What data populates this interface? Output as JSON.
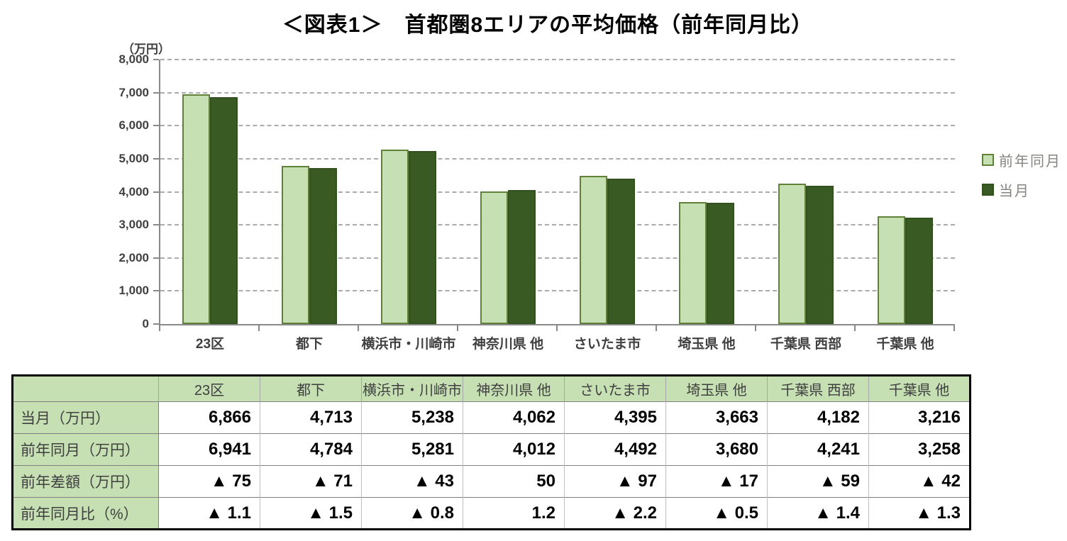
{
  "title": "＜図表1＞　首都圏8エリアの平均価格（前年同月比）",
  "chart_data": {
    "type": "bar",
    "title": "＜図表1＞　首都圏8エリアの平均価格（前年同月比）",
    "unit_label": "（万円）",
    "categories": [
      "23区",
      "都下",
      "横浜市・川崎市",
      "神奈川県 他",
      "さいたま市",
      "埼玉県 他",
      "千葉県 西部",
      "千葉県 他"
    ],
    "series": [
      {
        "name": "前年同月",
        "fill": "#c6e0b4",
        "border": "#5f8238",
        "values": [
          6941,
          4784,
          5281,
          4012,
          4492,
          3680,
          4241,
          3258
        ]
      },
      {
        "name": "当月",
        "fill": "#3a5a23",
        "border": "#33501f",
        "values": [
          6866,
          4713,
          5238,
          4062,
          4395,
          3663,
          4182,
          3216
        ]
      }
    ],
    "ylim": [
      0,
      8000
    ],
    "ytick_step": 1000,
    "ytick_labels": [
      "0",
      "1,000",
      "2,000",
      "3,000",
      "4,000",
      "5,000",
      "6,000",
      "7,000",
      "8,000"
    ],
    "grid": "horizontal-dashed",
    "legend_position": "right",
    "axis_color": "#898989",
    "gridline_color": "#ababab"
  },
  "table": {
    "header_bg": "#c6e0b4",
    "corner_label": "",
    "columns": [
      "23区",
      "都下",
      "横浜市・川崎市",
      "神奈川県 他",
      "さいたま市",
      "埼玉県 他",
      "千葉県 西部",
      "千葉県 他"
    ],
    "rows": [
      {
        "label": "当月（万円）",
        "values": [
          "6,866",
          "4,713",
          "5,238",
          "4,062",
          "4,395",
          "3,663",
          "4,182",
          "3,216"
        ]
      },
      {
        "label": "前年同月（万円）",
        "values": [
          "6,941",
          "4,784",
          "5,281",
          "4,012",
          "4,492",
          "3,680",
          "4,241",
          "3,258"
        ]
      },
      {
        "label": "前年差額（万円）",
        "values": [
          "▲ 75",
          "▲ 71",
          "▲ 43",
          "50",
          "▲ 97",
          "▲ 17",
          "▲ 59",
          "▲ 42"
        ]
      },
      {
        "label": "前年同月比（%）",
        "values": [
          "▲ 1.1",
          "▲ 1.5",
          "▲ 0.8",
          "1.2",
          "▲ 2.2",
          "▲ 0.5",
          "▲ 1.4",
          "▲ 1.3"
        ]
      }
    ]
  }
}
